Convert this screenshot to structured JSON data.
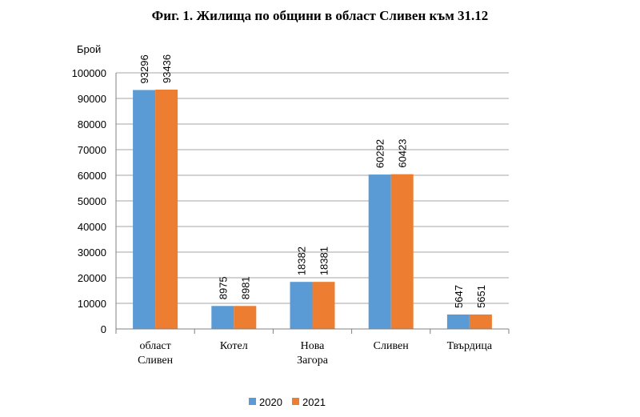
{
  "chart_data": {
    "type": "bar",
    "title": "Фиг. 1. Жилища по общини в област Сливен към 31.12",
    "ylabel": "Брой",
    "xlabel": "",
    "ylim": [
      0,
      100000
    ],
    "yticks": [
      "0",
      "10000",
      "20000",
      "30000",
      "40000",
      "50000",
      "60000",
      "70000",
      "80000",
      "90000",
      "100000"
    ],
    "categories": [
      [
        "област",
        "Сливен"
      ],
      [
        "Котел"
      ],
      [
        "Нова",
        "Загора"
      ],
      [
        "Сливен"
      ],
      [
        "Твърдица"
      ]
    ],
    "series": [
      {
        "name": "2020",
        "color": "#5b9bd5",
        "values": [
          93296,
          8975,
          18382,
          60292,
          5647
        ]
      },
      {
        "name": "2021",
        "color": "#ed7d31",
        "values": [
          93436,
          8981,
          18381,
          60423,
          5651
        ]
      }
    ],
    "grid": true,
    "legend": "bottom"
  }
}
